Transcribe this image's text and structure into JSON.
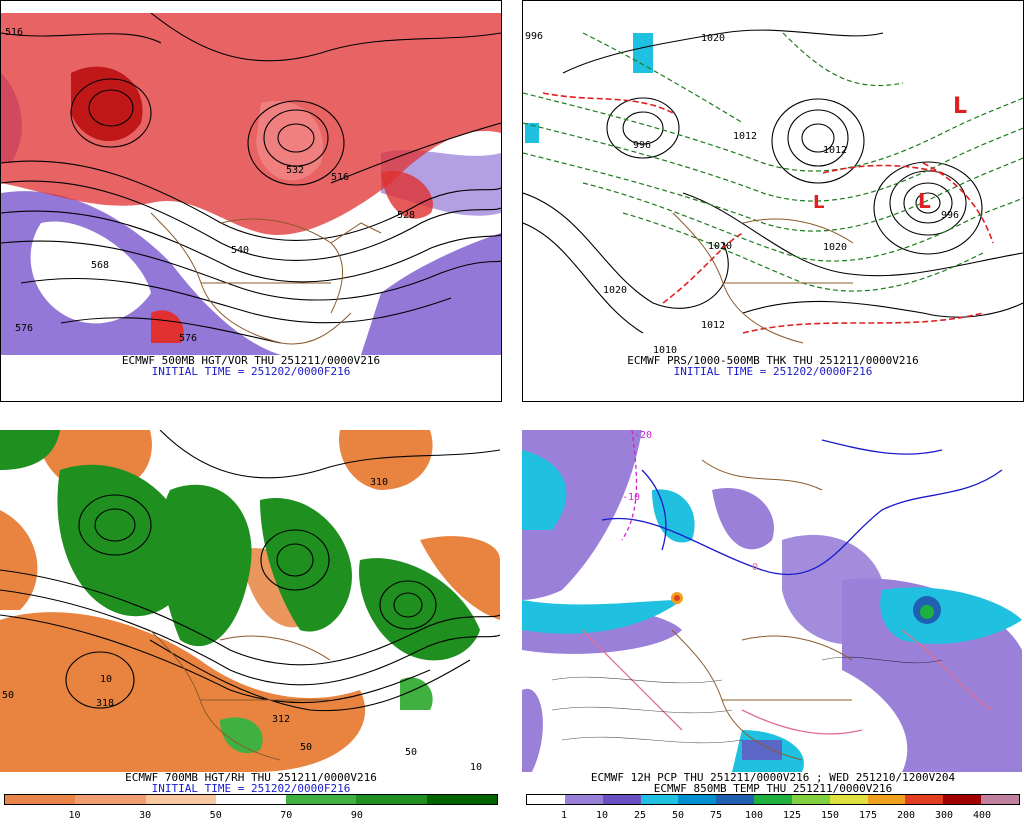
{
  "panels": [
    {
      "id": "p1",
      "caption1": "ECMWF 500MB HGT/VOR THU 251211/0000V216",
      "caption2": "INITIAL TIME = 251202/0000F216",
      "labels": [
        "516",
        "568",
        "576",
        "576",
        "516",
        "528",
        "540",
        "532"
      ]
    },
    {
      "id": "p2",
      "caption1": "ECMWF PRS/1000-500MB THK THU 251211/0000V216",
      "caption2": "INITIAL TIME = 251202/0000F216",
      "labels": [
        "996",
        "1020",
        "1012",
        "996",
        "1012",
        "1020",
        "1020",
        "1020",
        "1012",
        "1010",
        "996"
      ]
    },
    {
      "id": "p3",
      "caption1": "ECMWF 700MB HGT/RH THU 251211/0000V216",
      "caption2": "INITIAL TIME = 251202/0000F216",
      "labels": [
        "310",
        "318",
        "312",
        "10",
        "50",
        "50",
        "10",
        "50"
      ],
      "colorbar": {
        "colors": [
          "#e8844a",
          "#f0a070",
          "#f8c8a0",
          "#ffffff",
          "#40b040",
          "#1f8f1f",
          "#006400"
        ],
        "ticks": [
          "10",
          "30",
          "50",
          "70",
          "90"
        ]
      }
    },
    {
      "id": "p4",
      "caption1": "ECMWF 12H PCP THU 251211/0000V216 ; WED 251210/1200V204",
      "caption2": "ECMWF 850MB TEMP THU 251211/0000V216",
      "labels": [
        "-20",
        "-10",
        "0"
      ],
      "colorbar": {
        "colors": [
          "#ffffff",
          "#9a80d8",
          "#6a50c0",
          "#20c0e0",
          "#0090d0",
          "#2060b0",
          "#20b040",
          "#80d040",
          "#e0e040",
          "#f0a020",
          "#e04020",
          "#a00000",
          "#c080a0"
        ],
        "ticks": [
          "1",
          "10",
          "25",
          "50",
          "75",
          "100",
          "125",
          "150",
          "175",
          "200",
          "300",
          "400"
        ]
      }
    }
  ],
  "colors": {
    "vort_red": "#e03030",
    "vort_purple": "#8060d0",
    "contour": "#000000",
    "border": "#8b5a2b",
    "thk_green": "#1f7a1f",
    "thk_red": "#e02020",
    "rh_orange": "#e8843f",
    "rh_green": "#1f8f1f",
    "pcp_purple": "#9a80d8",
    "pcp_cyan": "#20c0e0",
    "temp_blue": "#1a1acc",
    "temp_pink": "#e07090",
    "temp_magenta": "#d020d0"
  }
}
